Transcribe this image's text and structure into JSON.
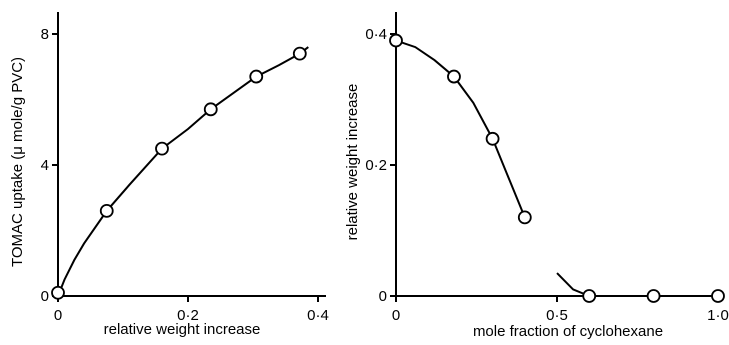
{
  "chart_data": [
    {
      "type": "line",
      "xlabel": "relative weight increase",
      "ylabel": "TOMAC uptake (μ mole/g PVC)",
      "xlim": [
        0,
        0.4
      ],
      "ylim": [
        0,
        8
      ],
      "x_ticks": [
        0,
        0.2,
        0.4
      ],
      "y_ticks": [
        0,
        4,
        8
      ],
      "x_tick_labels": [
        "0",
        "0·2",
        "0·4"
      ],
      "y_tick_labels": [
        "0",
        "4",
        "8"
      ],
      "grid": false,
      "points": [
        {
          "x": 0.0,
          "y": 0.1
        },
        {
          "x": 0.075,
          "y": 2.6
        },
        {
          "x": 0.16,
          "y": 4.5
        },
        {
          "x": 0.235,
          "y": 5.7
        },
        {
          "x": 0.305,
          "y": 6.7
        },
        {
          "x": 0.372,
          "y": 7.4
        }
      ],
      "curve": [
        {
          "x": 0.0,
          "y": 0.0
        },
        {
          "x": 0.01,
          "y": 0.5
        },
        {
          "x": 0.025,
          "y": 1.1
        },
        {
          "x": 0.04,
          "y": 1.6
        },
        {
          "x": 0.075,
          "y": 2.6
        },
        {
          "x": 0.11,
          "y": 3.4
        },
        {
          "x": 0.16,
          "y": 4.5
        },
        {
          "x": 0.2,
          "y": 5.1
        },
        {
          "x": 0.235,
          "y": 5.7
        },
        {
          "x": 0.27,
          "y": 6.2
        },
        {
          "x": 0.305,
          "y": 6.7
        },
        {
          "x": 0.34,
          "y": 7.05
        },
        {
          "x": 0.372,
          "y": 7.4
        },
        {
          "x": 0.385,
          "y": 7.6
        }
      ],
      "curve_gap": [
        0.04,
        0.068
      ]
    },
    {
      "type": "line",
      "xlabel": "mole fraction of cyclohexane",
      "ylabel": "relative weight increase",
      "xlim": [
        0,
        1.0
      ],
      "ylim": [
        0,
        0.4
      ],
      "x_ticks": [
        0,
        0.5,
        1.0
      ],
      "y_ticks": [
        0,
        0.2,
        0.4
      ],
      "x_tick_labels": [
        "0",
        "0·5",
        "1·0"
      ],
      "y_tick_labels": [
        "0",
        "0·2",
        "0·4"
      ],
      "grid": false,
      "points": [
        {
          "x": 0.0,
          "y": 0.39
        },
        {
          "x": 0.18,
          "y": 0.335
        },
        {
          "x": 0.3,
          "y": 0.24
        },
        {
          "x": 0.4,
          "y": 0.12
        },
        {
          "x": 0.6,
          "y": 0.0
        },
        {
          "x": 0.8,
          "y": 0.0
        },
        {
          "x": 1.0,
          "y": 0.0
        }
      ],
      "curve": [
        {
          "x": 0.0,
          "y": 0.39
        },
        {
          "x": 0.06,
          "y": 0.38
        },
        {
          "x": 0.12,
          "y": 0.36
        },
        {
          "x": 0.18,
          "y": 0.335
        },
        {
          "x": 0.24,
          "y": 0.295
        },
        {
          "x": 0.3,
          "y": 0.24
        },
        {
          "x": 0.35,
          "y": 0.18
        },
        {
          "x": 0.4,
          "y": 0.12
        },
        {
          "x": 0.45,
          "y": 0.07
        },
        {
          "x": 0.5,
          "y": 0.035
        },
        {
          "x": 0.55,
          "y": 0.01
        },
        {
          "x": 0.6,
          "y": 0.0
        },
        {
          "x": 0.8,
          "y": 0.0
        },
        {
          "x": 1.0,
          "y": 0.0
        }
      ],
      "curve_gap": [
        0.43,
        0.5
      ]
    }
  ]
}
